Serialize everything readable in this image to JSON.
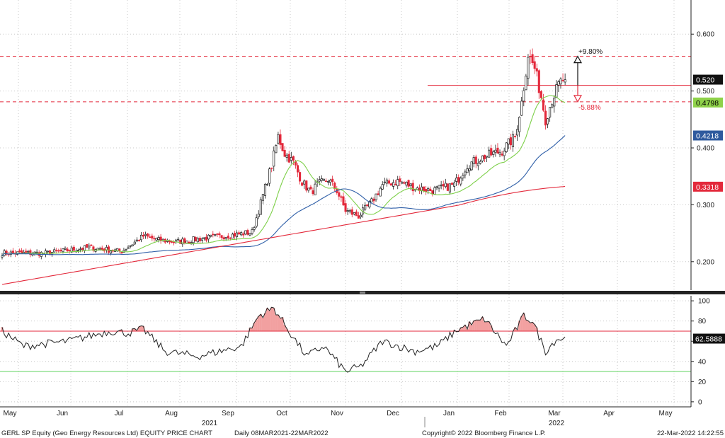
{
  "chart_data": {
    "type": "candlestick",
    "title": "GERL SP Equity (Geo Energy Resources Ltd) EQUITY PRICE CHART",
    "subtitle": "Daily 08MAR2021-22MAR2022",
    "copyright": "Copyright© 2022 Bloomberg Finance L.P.",
    "timestamp": "22-Mar-2022 14:22:55",
    "x_month_labels": [
      "May",
      "Jun",
      "Jul",
      "Aug",
      "Sep",
      "Oct",
      "Nov",
      "Dec",
      "Jan",
      "Feb",
      "Mar",
      "Apr",
      "May"
    ],
    "year_labels": [
      "2021",
      "2022"
    ],
    "price_axis": {
      "ylim": [
        0.15,
        0.66
      ],
      "ticks": [
        "0.200",
        "0.300",
        "0.400",
        "0.500",
        "0.600"
      ]
    },
    "price_tags": [
      {
        "value": "0.520",
        "bg": "#111111",
        "fg": "#ffffff"
      },
      {
        "value": "0.4798",
        "bg": "#8fd24a",
        "fg": "#000000"
      },
      {
        "value": "0.4218",
        "bg": "#2f5a9e",
        "fg": "#ffffff"
      },
      {
        "value": "0.3318",
        "bg": "#e3293b",
        "fg": "#ffffff"
      }
    ],
    "annotations": {
      "up_pct": "+9.80%",
      "down_pct": "-5.88%",
      "upper_band": 0.561,
      "lower_band": 0.481,
      "last": 0.51
    },
    "rsi_axis": {
      "ylim": [
        -5,
        105
      ],
      "ticks": [
        "100",
        "80",
        "60",
        "40",
        "20",
        "0"
      ]
    },
    "rsi_levels": {
      "overbought": 70,
      "oversold": 30
    },
    "rsi_last": "62.5888",
    "close_keypoints": [
      [
        0,
        0.215
      ],
      [
        20,
        0.215
      ],
      [
        40,
        0.225
      ],
      [
        55,
        0.218
      ],
      [
        65,
        0.245
      ],
      [
        72,
        0.238
      ],
      [
        80,
        0.235
      ],
      [
        95,
        0.242
      ],
      [
        108,
        0.248
      ],
      [
        115,
        0.252
      ],
      [
        118,
        0.29
      ],
      [
        124,
        0.37
      ],
      [
        127,
        0.42
      ],
      [
        130,
        0.39
      ],
      [
        134,
        0.375
      ],
      [
        138,
        0.34
      ],
      [
        142,
        0.322
      ],
      [
        145,
        0.335
      ],
      [
        150,
        0.345
      ],
      [
        154,
        0.325
      ],
      [
        158,
        0.29
      ],
      [
        164,
        0.28
      ],
      [
        170,
        0.305
      ],
      [
        175,
        0.335
      ],
      [
        182,
        0.342
      ],
      [
        190,
        0.33
      ],
      [
        198,
        0.325
      ],
      [
        208,
        0.335
      ],
      [
        214,
        0.37
      ],
      [
        222,
        0.385
      ],
      [
        230,
        0.395
      ],
      [
        236,
        0.42
      ],
      [
        239,
        0.48
      ],
      [
        242,
        0.565
      ],
      [
        245,
        0.54
      ],
      [
        248,
        0.49
      ],
      [
        250,
        0.45
      ],
      [
        253,
        0.485
      ],
      [
        256,
        0.51
      ],
      [
        258,
        0.52
      ]
    ],
    "series": [
      {
        "name": "",
        "color": "#7ed04a"
      },
      {
        "name": "",
        "color": "#2f5fa8"
      },
      {
        "name": "",
        "color": "#e3293b"
      }
    ],
    "colors": {
      "up": "#1a1a1a",
      "down": "#e3293b",
      "band": "#e3293b",
      "rsi_fill": "#f2a0a0",
      "rsi_low": "#5fd35f"
    }
  }
}
